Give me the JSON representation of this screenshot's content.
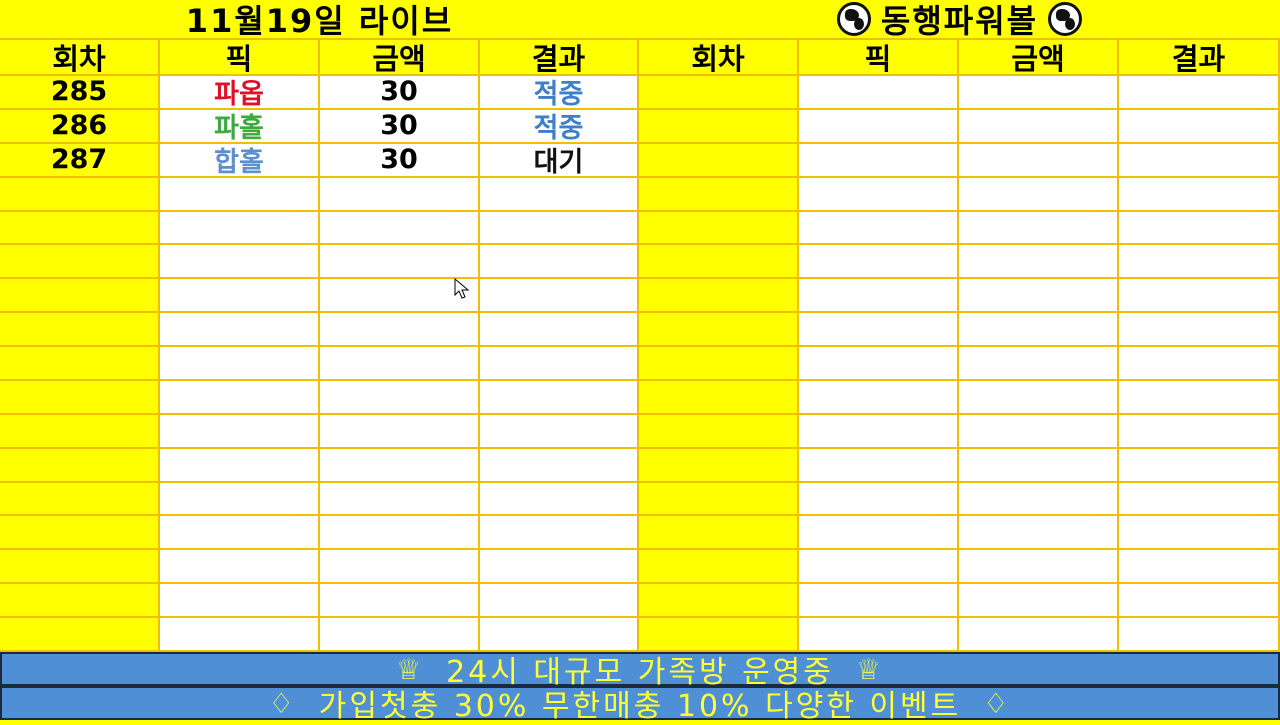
{
  "left": {
    "title": "11월19일 라이브",
    "headers": [
      "회차",
      "픽",
      "금액",
      "결과"
    ],
    "rows": [
      {
        "round": "285",
        "pick": "파옵",
        "pick_color": "#e0102a",
        "amount": "30",
        "result": "적중",
        "result_color": "#3d7fc9"
      },
      {
        "round": "286",
        "pick": "파홀",
        "pick_color": "#3caa3c",
        "amount": "30",
        "result": "적중",
        "result_color": "#3d7fc9"
      },
      {
        "round": "287",
        "pick": "합홀",
        "pick_color": "#5a90d0",
        "amount": "30",
        "result": "대기",
        "result_color": "#111111"
      }
    ]
  },
  "right": {
    "title": "동행파워볼",
    "title_icon": "globe-icon",
    "headers": [
      "회차",
      "픽",
      "금액",
      "결과"
    ],
    "rows": []
  },
  "banner1": {
    "text": "24시 대규모 가족방 운영중",
    "icon": "crown-icon"
  },
  "banner2": {
    "text": "가입첫충 30% 무한매충 10% 다양한 이벤트",
    "icon": "diamond-icon"
  },
  "colors": {
    "yellow": "#ffff00",
    "grid": "#f0c000",
    "banner": "#4f8fd6",
    "banner_text": "#ffff33"
  }
}
